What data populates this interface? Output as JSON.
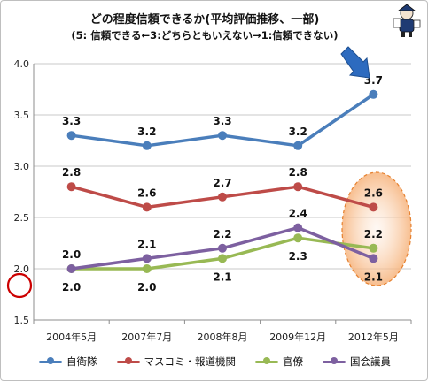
{
  "title": {
    "line1": "どの程度信頼できるか(平均評価推移、一部)",
    "line2": "(5: 信頼できる←3:どちらともいえない→1:信頼できない)"
  },
  "chart_data": {
    "type": "line",
    "categories": [
      "2004年5月",
      "2007年7月",
      "2008年8月",
      "2009年12月",
      "2012年5月"
    ],
    "ylim": [
      1.5,
      4.0
    ],
    "yticks": [
      "1.5",
      "2.0",
      "2.5",
      "3.0",
      "3.5",
      "4.0"
    ],
    "grid": true,
    "legend_position": "bottom",
    "series": [
      {
        "name": "自衛隊",
        "color": "#4a7ebb",
        "values": [
          3.3,
          3.2,
          3.3,
          3.2,
          3.7
        ],
        "labels": [
          "3.3",
          "3.2",
          "3.3",
          "3.2",
          "3.7"
        ]
      },
      {
        "name": "マスコミ・報道機関",
        "color": "#be4b48",
        "values": [
          2.8,
          2.6,
          2.7,
          2.8,
          2.6
        ],
        "labels": [
          "2.8",
          "2.6",
          "2.7",
          "2.8",
          "2.6"
        ]
      },
      {
        "name": "官僚",
        "color": "#98b954",
        "values": [
          2.0,
          2.0,
          2.1,
          2.3,
          2.2
        ],
        "labels": [
          "2.0",
          "2.0",
          "2.1",
          "2.3",
          "2.2"
        ]
      },
      {
        "name": "国会議員",
        "color": "#7d60a0",
        "values": [
          2.0,
          2.1,
          2.2,
          2.4,
          2.1
        ],
        "labels": [
          "2.0",
          "2.1",
          "2.2",
          "2.4",
          "2.1"
        ]
      }
    ]
  }
}
